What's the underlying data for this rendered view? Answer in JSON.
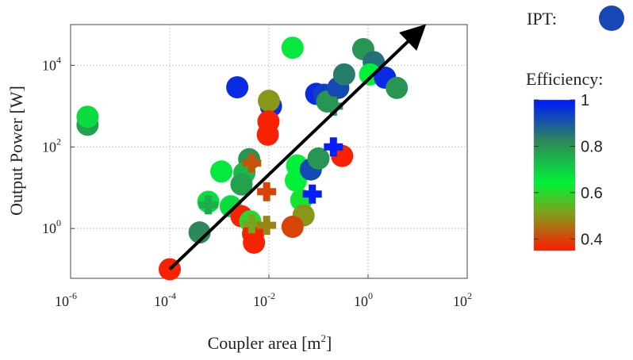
{
  "chart_data": {
    "type": "scatter",
    "xlabel": "Coupler area [m",
    "xlabel_sup": "2",
    "xlabel_end": "]",
    "ylabel": "Output Power [W]",
    "x_scale": "log",
    "y_scale": "log",
    "xlim": [
      1e-06,
      100
    ],
    "ylim": [
      0.06,
      100000
    ],
    "grid": true,
    "x_ticks": [
      {
        "base": "10",
        "exp": "-6",
        "value": 1e-06
      },
      {
        "base": "10",
        "exp": "-4",
        "value": 0.0001
      },
      {
        "base": "10",
        "exp": "-2",
        "value": 0.01
      },
      {
        "base": "10",
        "exp": "0",
        "value": 1
      },
      {
        "base": "10",
        "exp": "2",
        "value": 100
      }
    ],
    "y_ticks": [
      {
        "base": "10",
        "exp": "0",
        "value": 1
      },
      {
        "base": "10",
        "exp": "2",
        "value": 100
      },
      {
        "base": "10",
        "exp": "4",
        "value": 10000
      }
    ],
    "legend": {
      "ipt_label": "IPT:",
      "ipt_color": "#1747b4",
      "efficiency_label": "Efficiency:",
      "colorbar_ticks": [
        "1",
        "0.8",
        "0.6",
        "0.4"
      ],
      "colorbar_range": [
        0.35,
        1.0
      ],
      "colorbar_colors": [
        "#ff1a00",
        "#7fa01a",
        "#00f23a",
        "#2e8a55",
        "#0018ff"
      ]
    },
    "trend_arrow": {
      "from": [
        0.0001,
        0.1
      ],
      "to": [
        12,
        80000
      ]
    },
    "circles": [
      {
        "x": 2.2e-06,
        "y": 350,
        "eff": 0.78
      },
      {
        "x": 2.2e-06,
        "y": 550,
        "eff": 0.68
      },
      {
        "x": 0.0023,
        "y": 2900,
        "eff": 0.97
      },
      {
        "x": 0.03,
        "y": 27000,
        "eff": 0.66
      },
      {
        "x": 0.011,
        "y": 1000,
        "eff": 0.97
      },
      {
        "x": 0.01,
        "y": 1350,
        "eff": 0.5
      },
      {
        "x": 0.0098,
        "y": 420,
        "eff": 0.36
      },
      {
        "x": 0.0095,
        "y": 200,
        "eff": 0.36
      },
      {
        "x": 0.09,
        "y": 2000,
        "eff": 0.97
      },
      {
        "x": 0.13,
        "y": 1900,
        "eff": 0.94
      },
      {
        "x": 0.15,
        "y": 1300,
        "eff": 0.8
      },
      {
        "x": 0.25,
        "y": 2800,
        "eff": 0.92
      },
      {
        "x": 0.33,
        "y": 6000,
        "eff": 0.84
      },
      {
        "x": 0.8,
        "y": 25000,
        "eff": 0.8
      },
      {
        "x": 1.3,
        "y": 12000,
        "eff": 0.86
      },
      {
        "x": 1.1,
        "y": 6000,
        "eff": 0.64
      },
      {
        "x": 2.2,
        "y": 5000,
        "eff": 0.97
      },
      {
        "x": 3.8,
        "y": 2800,
        "eff": 0.8
      },
      {
        "x": 0.0011,
        "y": 25,
        "eff": 0.66
      },
      {
        "x": 0.004,
        "y": 50,
        "eff": 0.8
      },
      {
        "x": 0.0032,
        "y": 23,
        "eff": 0.74
      },
      {
        "x": 0.0028,
        "y": 12,
        "eff": 0.78
      },
      {
        "x": 0.0006,
        "y": 4.5,
        "eff": 0.68
      },
      {
        "x": 0.0017,
        "y": 3.5,
        "eff": 0.68
      },
      {
        "x": 0.0004,
        "y": 0.8,
        "eff": 0.82
      },
      {
        "x": 0.0028,
        "y": 2,
        "eff": 0.36
      },
      {
        "x": 0.0042,
        "y": 1.5,
        "eff": 0.6
      },
      {
        "x": 0.0048,
        "y": 0.75,
        "eff": 0.36
      },
      {
        "x": 0.005,
        "y": 0.45,
        "eff": 0.36
      },
      {
        "x": 0.037,
        "y": 35,
        "eff": 0.64
      },
      {
        "x": 0.035,
        "y": 15,
        "eff": 0.64
      },
      {
        "x": 0.07,
        "y": 28,
        "eff": 0.92
      },
      {
        "x": 0.1,
        "y": 52,
        "eff": 0.8
      },
      {
        "x": 0.045,
        "y": 5,
        "eff": 0.62
      },
      {
        "x": 0.05,
        "y": 2.1,
        "eff": 0.5
      },
      {
        "x": 0.03,
        "y": 1.1,
        "eff": 0.4
      },
      {
        "x": 0.3,
        "y": 60,
        "eff": 0.36
      },
      {
        "x": 0.0001,
        "y": 0.1,
        "eff": 0.36
      }
    ],
    "crosses": [
      {
        "x": 0.0006,
        "y": 3.8,
        "eff": 0.76
      },
      {
        "x": 0.0045,
        "y": 40,
        "eff": 0.42
      },
      {
        "x": 0.009,
        "y": 8,
        "eff": 0.4
      },
      {
        "x": 0.0045,
        "y": 1.3,
        "eff": 0.52
      },
      {
        "x": 0.009,
        "y": 1.2,
        "eff": 0.48
      },
      {
        "x": 0.075,
        "y": 7,
        "eff": 0.99
      },
      {
        "x": 0.2,
        "y": 100,
        "eff": 0.99
      },
      {
        "x": 0.2,
        "y": 1000,
        "eff": 0.8
      }
    ]
  }
}
